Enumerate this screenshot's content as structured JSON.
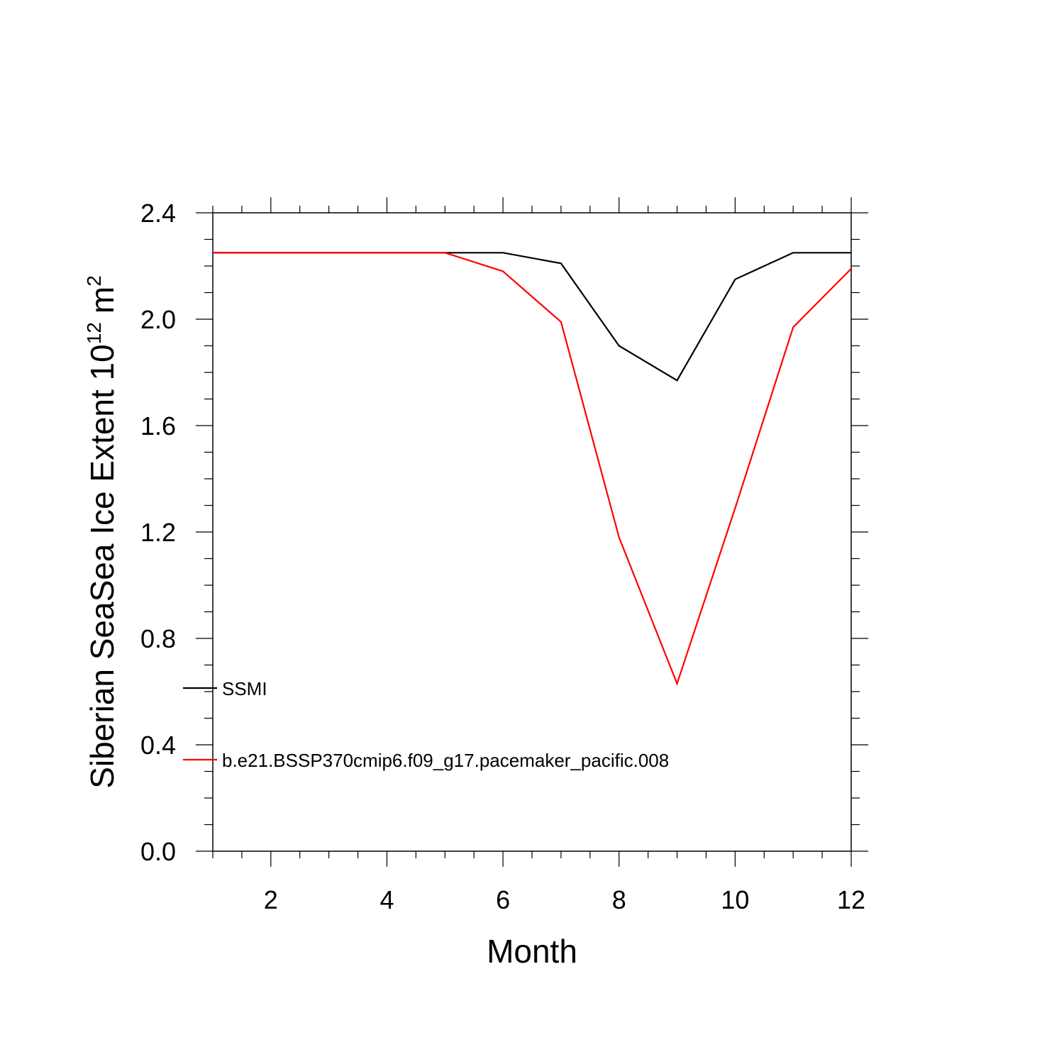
{
  "chart_data": {
    "type": "line",
    "xlabel": "Month",
    "ylabel": {
      "prefix": "Siberian SeaSea Ice Extent 10",
      "exponent": "12",
      "unit": "m",
      "unit_exponent": "2"
    },
    "xlim": [
      1,
      12
    ],
    "ylim": [
      0.0,
      2.4
    ],
    "x_ticks": [
      2,
      4,
      6,
      8,
      10,
      12
    ],
    "x_tick_labels": [
      "2",
      "4",
      "6",
      "8",
      "10",
      "12"
    ],
    "y_ticks": [
      0.0,
      0.4,
      0.8,
      1.2,
      1.6,
      2.0,
      2.4
    ],
    "y_tick_labels": [
      "0.0",
      "0.4",
      "0.8",
      "1.2",
      "1.6",
      "2.0",
      "2.4"
    ],
    "grid": false,
    "legend_placement": "lower-left",
    "x": [
      1,
      2,
      3,
      4,
      5,
      6,
      7,
      8,
      9,
      10,
      11,
      12
    ],
    "series": [
      {
        "name": "SSMI",
        "color": "#000000",
        "values": [
          2.25,
          2.25,
          2.25,
          2.25,
          2.25,
          2.25,
          2.21,
          1.9,
          1.77,
          2.15,
          2.25,
          2.25
        ]
      },
      {
        "name": "b.e21.BSSP370cmip6.f09_g17.pacemaker_pacific.008",
        "color": "#ff0000",
        "values": [
          2.25,
          2.25,
          2.25,
          2.25,
          2.25,
          2.18,
          1.99,
          1.18,
          0.63,
          1.29,
          1.97,
          2.19
        ]
      }
    ]
  }
}
